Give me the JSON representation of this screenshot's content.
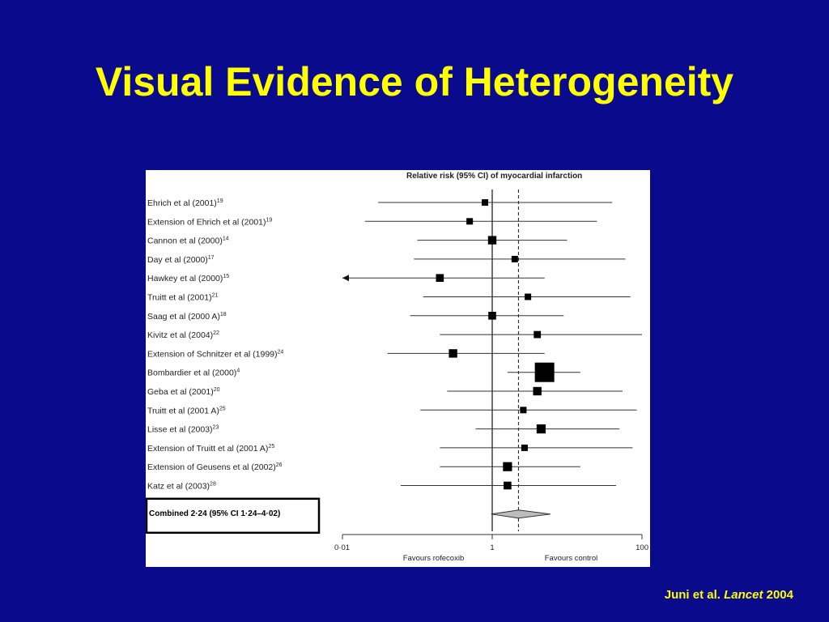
{
  "slide": {
    "title": "Visual Evidence of Heterogeneity",
    "citation": {
      "authors": "Juni et al.",
      "journal": "Lancet",
      "year": "2004"
    },
    "colors": {
      "background": "#0a0a8c",
      "title": "#ffff00",
      "citation": "#ffff00"
    }
  },
  "chart_data": {
    "type": "forest",
    "title": "Relative risk (95% CI) of myocardial infarction",
    "x_scale": "log",
    "xlim": [
      0.01,
      100
    ],
    "x_ticks": [
      0.01,
      1,
      100
    ],
    "x_tick_labels": [
      "0·01",
      "1",
      "100"
    ],
    "reference_line": 1,
    "combined_line": 2.24,
    "xlabel_left": "Favours rofecoxib",
    "xlabel_right": "Favours control",
    "studies": [
      {
        "name": "Ehrich et al (2001)",
        "ref": "19",
        "rr": 0.8,
        "lo": 0.03,
        "hi": 40,
        "weight": 1
      },
      {
        "name": "Extension of Ehrich et al (2001)",
        "ref": "19",
        "rr": 0.5,
        "lo": 0.02,
        "hi": 25,
        "weight": 1
      },
      {
        "name": "Cannon et al (2000)",
        "ref": "14",
        "rr": 1.0,
        "lo": 0.1,
        "hi": 10,
        "weight": 1.3
      },
      {
        "name": "Day et al (2000)",
        "ref": "17",
        "rr": 2.0,
        "lo": 0.09,
        "hi": 60,
        "weight": 1
      },
      {
        "name": "Hawkey et al (2000)",
        "ref": "15",
        "rr": 0.2,
        "lo": 0.01,
        "hi": 5.0,
        "weight": 1.2,
        "arrow_left": true
      },
      {
        "name": "Truitt et al (2001)",
        "ref": "21",
        "rr": 3.0,
        "lo": 0.12,
        "hi": 70,
        "weight": 1
      },
      {
        "name": "Saag et al (2000 A)",
        "ref": "18",
        "rr": 1.0,
        "lo": 0.08,
        "hi": 9.0,
        "weight": 1.2
      },
      {
        "name": "Kivitz et al (2004)",
        "ref": "22",
        "rr": 4.0,
        "lo": 0.2,
        "hi": 100,
        "weight": 1.1
      },
      {
        "name": "Extension of Schnitzer et al (1999)",
        "ref": "24",
        "rr": 0.3,
        "lo": 0.04,
        "hi": 5.0,
        "weight": 1.3
      },
      {
        "name": "Bombardier et al (2000)",
        "ref": "4",
        "rr": 5.0,
        "lo": 1.6,
        "hi": 15,
        "weight": 3
      },
      {
        "name": "Geba et al (2001)",
        "ref": "20",
        "rr": 4.0,
        "lo": 0.25,
        "hi": 55,
        "weight": 1.3
      },
      {
        "name": "Truitt et al (2001 A)",
        "ref": "25",
        "rr": 2.6,
        "lo": 0.11,
        "hi": 85,
        "weight": 1
      },
      {
        "name": "Lisse et al (2003)",
        "ref": "23",
        "rr": 4.5,
        "lo": 0.6,
        "hi": 50,
        "weight": 1.4
      },
      {
        "name": "Extension of Truitt et al (2001 A)",
        "ref": "25",
        "rr": 2.7,
        "lo": 0.2,
        "hi": 75,
        "weight": 1
      },
      {
        "name": "Extension of Geusens et al (2002)",
        "ref": "26",
        "rr": 1.6,
        "lo": 0.2,
        "hi": 15,
        "weight": 1.4
      },
      {
        "name": "Katz et al (2003)",
        "ref": "28",
        "rr": 1.6,
        "lo": 0.06,
        "hi": 45,
        "weight": 1.2
      }
    ],
    "combined": {
      "label": "Combined 2·24 (95% CI 1·24–4·02)",
      "rr": 2.24,
      "lo": 1.24,
      "hi": 4.02
    }
  }
}
